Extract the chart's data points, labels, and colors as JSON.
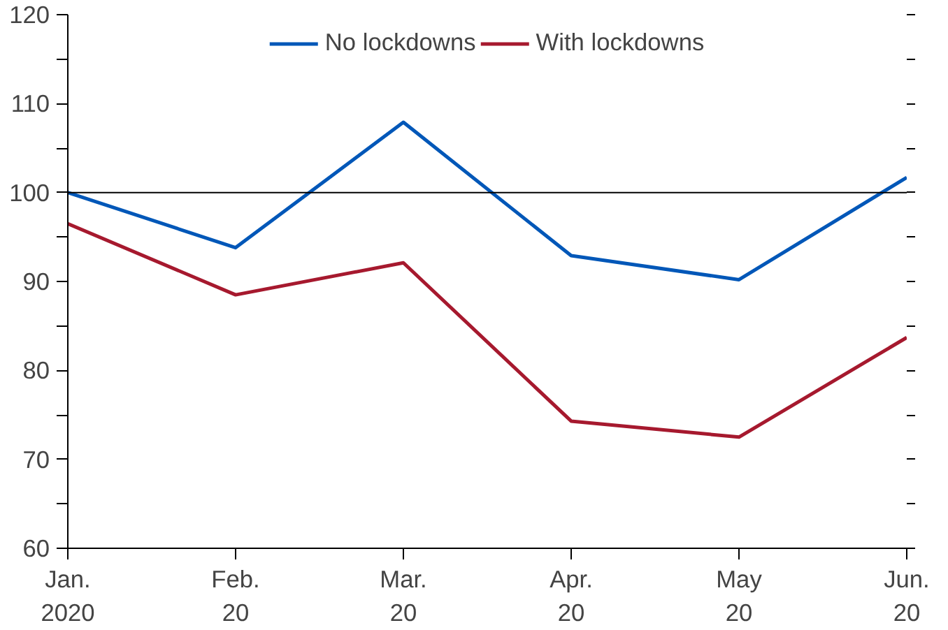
{
  "chart_data": {
    "type": "line",
    "categories": [
      "Jan.\n2020",
      "Feb.\n20",
      "Mar.\n20",
      "Apr.\n20",
      "May\n20",
      "Jun.\n20"
    ],
    "series": [
      {
        "name": "No lockdowns",
        "color": "#0057b8",
        "values": [
          100,
          93.8,
          107.9,
          92.9,
          90.2,
          101.7
        ]
      },
      {
        "name": "With lockdowns",
        "color": "#a6192e",
        "values": [
          96.5,
          88.5,
          92.1,
          74.3,
          72.5,
          83.7
        ]
      }
    ],
    "ylim": [
      60,
      120
    ],
    "yticks": [
      60,
      {
        "value": 65,
        "label": null
      },
      70,
      {
        "value": 75,
        "label": null
      },
      80,
      {
        "value": 85,
        "label": null
      },
      90,
      {
        "value": 95,
        "label": null
      },
      100,
      {
        "value": 105,
        "label": null
      },
      110,
      {
        "value": 115,
        "label": null
      },
      120
    ],
    "ref_lines": [
      {
        "axis": "y",
        "value": 100,
        "label": null,
        "color": "#000000"
      }
    ],
    "grid": false,
    "legend": "top",
    "marker": "none",
    "line_style": "solid"
  }
}
